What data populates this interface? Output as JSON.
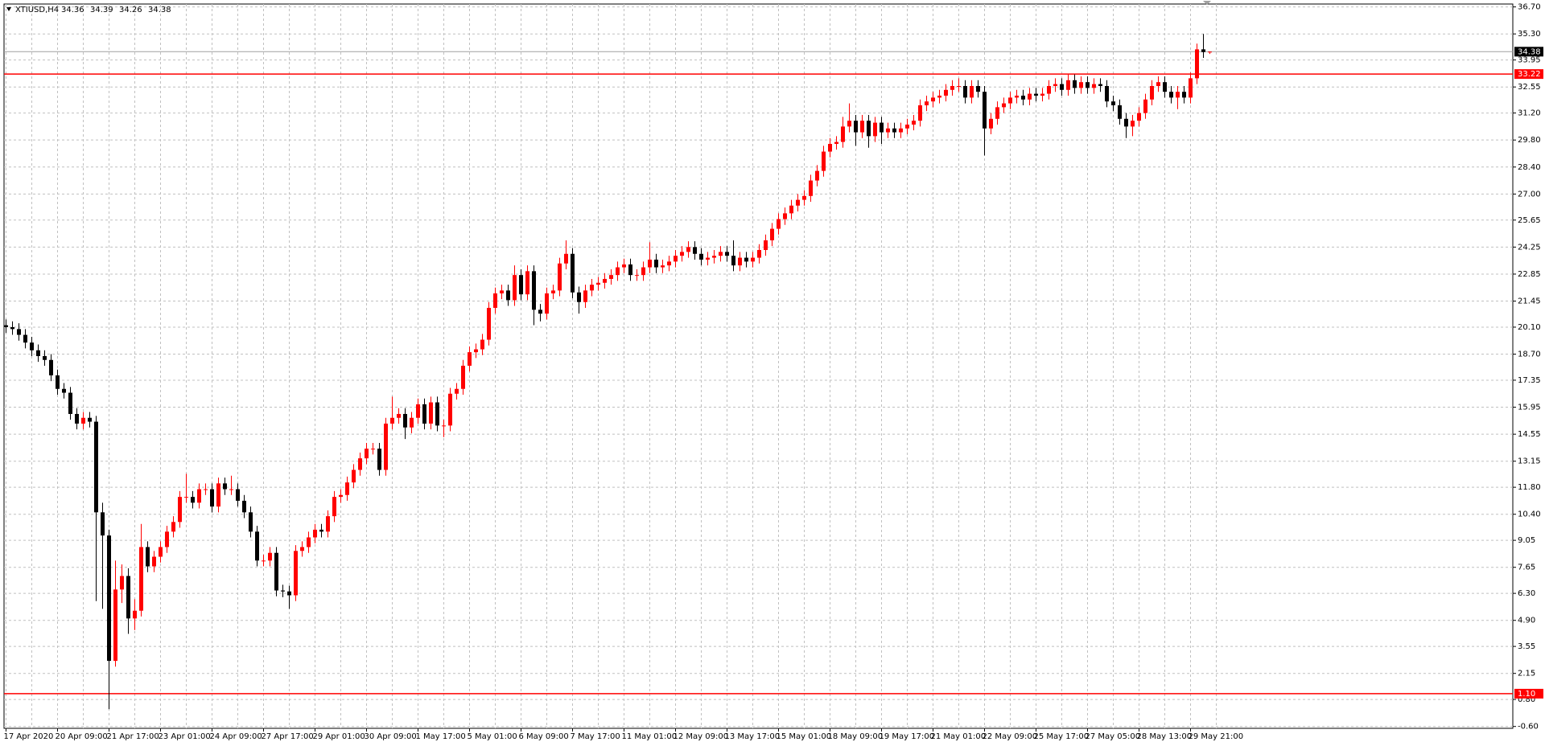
{
  "chart_data": {
    "type": "candlestick",
    "symbol": "XTIUSD,H4",
    "header_ohlc": [
      34.36,
      34.39,
      34.26,
      34.38
    ],
    "up_color": "#ff0000",
    "down_color": "#000000",
    "grid": true,
    "grid_color": "#c0c0c0",
    "ylim": [
      -0.6,
      36.7
    ],
    "yticks": [
      {
        "value": 36.7,
        "label": "36.70"
      },
      {
        "value": 35.3,
        "label": "35.30"
      },
      33.95,
      32.55,
      {
        "value": 31.2,
        "label": "31.20"
      },
      {
        "value": 29.8,
        "label": "29.80"
      },
      {
        "value": 28.4,
        "label": "28.40"
      },
      {
        "value": 27,
        "label": "27.00"
      },
      25.65,
      24.25,
      22.85,
      21.45,
      {
        "value": 20.1,
        "label": "20.10"
      },
      {
        "value": 18.7,
        "label": "18.70"
      },
      17.35,
      15.95,
      14.55,
      13.15,
      {
        "value": 11.8,
        "label": "11.80"
      },
      {
        "value": 10.4,
        "label": "10.40"
      },
      9.05,
      7.65,
      {
        "value": 6.3,
        "label": "6.30"
      },
      {
        "value": 4.9,
        "label": "4.90"
      },
      3.55,
      2.15,
      {
        "value": 0.8,
        "label": "0.80"
      },
      {
        "value": -0.6,
        "label": "-0.60"
      }
    ],
    "xticks": [
      {
        "value": 0,
        "label": "17 Apr 2020"
      },
      {
        "value": 8,
        "label": "20 Apr 09:00"
      },
      {
        "value": 16,
        "label": "21 Apr 17:00"
      },
      {
        "value": 24,
        "label": "23 Apr 01:00"
      },
      {
        "value": 32,
        "label": "24 Apr 09:00"
      },
      {
        "value": 40,
        "label": "27 Apr 17:00"
      },
      {
        "value": 48,
        "label": "29 Apr 01:00"
      },
      {
        "value": 56,
        "label": "30 Apr 09:00"
      },
      {
        "value": 64,
        "label": "1 May 17:00"
      },
      {
        "value": 72,
        "label": "5 May 01:00"
      },
      {
        "value": 80,
        "label": "6 May 09:00"
      },
      {
        "value": 88,
        "label": "7 May 17:00"
      },
      {
        "value": 96,
        "label": "11 May 01:00"
      },
      {
        "value": 104,
        "label": "12 May 09:00"
      },
      {
        "value": 112,
        "label": "13 May 17:00"
      },
      {
        "value": 120,
        "label": "15 May 01:00"
      },
      {
        "value": 128,
        "label": "18 May 09:00"
      },
      {
        "value": 136,
        "label": "19 May 17:00"
      },
      {
        "value": 144,
        "label": "21 May 01:00"
      },
      {
        "value": 152,
        "label": "22 May 09:00"
      },
      {
        "value": 160,
        "label": "25 May 17:00"
      },
      {
        "value": 168,
        "label": "27 May 05:00"
      },
      {
        "value": 176,
        "label": "28 May 13:00"
      },
      {
        "value": 184,
        "label": "29 May 21:00"
      }
    ],
    "bid_line": {
      "value": 34.38,
      "color": "#a0a0a0"
    },
    "hlines": [
      33.22,
      {
        "value": 1.1,
        "label": "1.10"
      }
    ],
    "hline_color": "#ff0000",
    "open": [
      20.2,
      20.1,
      20.0,
      19.7,
      19.3,
      18.9,
      18.6,
      18.4,
      17.6,
      16.9,
      16.7,
      15.6,
      15.1,
      15.4,
      15.2,
      10.5,
      9.3,
      2.8,
      6.5,
      7.2,
      5.0,
      5.4,
      8.7,
      7.7,
      8.2,
      8.7,
      9.5,
      10.0,
      11.3,
      11.3,
      11.0,
      11.7,
      11.7,
      10.8,
      12.0,
      11.7,
      11.7,
      11.1,
      10.5,
      9.5,
      8.0,
      8.0,
      8.4,
      6.45,
      6.4,
      6.2,
      8.5,
      8.7,
      9.2,
      9.6,
      9.5,
      10.3,
      11.3,
      11.4,
      12.05,
      12.7,
      13.3,
      13.8,
      13.8,
      12.7,
      15.1,
      15.4,
      15.6,
      14.9,
      15.4,
      16.1,
      15.1,
      16.2,
      15.0,
      15.0,
      16.65,
      16.9,
      18.1,
      18.8,
      18.95,
      19.45,
      21.1,
      21.85,
      22.0,
      21.5,
      22.8,
      21.8,
      23.0,
      21.0,
      20.8,
      21.85,
      22.0,
      23.4,
      23.9,
      21.9,
      21.4,
      22.0,
      22.3,
      22.4,
      22.6,
      22.8,
      23.2,
      23.35,
      22.8,
      22.8,
      23.2,
      23.6,
      23.2,
      23.3,
      23.5,
      23.8,
      24.0,
      24.25,
      23.9,
      23.6,
      23.7,
      23.8,
      24.0,
      23.8,
      23.3,
      23.7,
      23.5,
      23.7,
      24.1,
      24.6,
      25.2,
      25.7,
      26.0,
      26.4,
      26.7,
      26.9,
      27.7,
      28.2,
      29.2,
      29.6,
      29.7,
      30.5,
      30.8,
      30.2,
      30.8,
      30.0,
      30.7,
      30.2,
      30.4,
      30.2,
      30.4,
      30.6,
      30.8,
      31.6,
      31.8,
      32.0,
      32.1,
      32.4,
      32.6,
      32.6,
      32.0,
      32.6,
      32.3,
      30.4,
      30.9,
      31.5,
      31.7,
      32.0,
      32.1,
      31.9,
      32.2,
      32.1,
      32.2,
      32.6,
      32.7,
      32.4,
      32.9,
      32.5,
      32.8,
      32.5,
      32.7,
      32.6,
      31.8,
      31.6,
      30.9,
      30.5,
      30.8,
      31.2,
      31.9,
      32.6,
      32.8,
      32.3,
      32.0,
      32.3,
      32.0,
      33.0,
      34.5,
      34.36
    ],
    "high": [
      20.5,
      20.4,
      20.3,
      20.0,
      19.6,
      19.2,
      18.9,
      18.7,
      17.9,
      17.2,
      17.0,
      15.9,
      15.7,
      15.7,
      15.5,
      11.0,
      9.6,
      8.0,
      7.8,
      7.6,
      6.0,
      9.9,
      9.0,
      8.5,
      9.0,
      9.8,
      10.3,
      11.6,
      12.5,
      11.6,
      12.0,
      12.0,
      12.0,
      12.3,
      12.3,
      12.4,
      12.0,
      11.4,
      10.8,
      9.8,
      8.3,
      8.7,
      8.7,
      6.75,
      6.7,
      8.8,
      9.0,
      9.5,
      9.9,
      9.9,
      10.6,
      11.6,
      11.7,
      12.35,
      13.0,
      13.6,
      14.1,
      14.1,
      14.1,
      15.4,
      16.5,
      15.9,
      15.9,
      15.7,
      16.4,
      16.4,
      16.5,
      16.5,
      15.3,
      16.95,
      17.2,
      18.4,
      19.1,
      19.25,
      19.75,
      21.4,
      22.15,
      22.3,
      22.3,
      23.3,
      23.1,
      23.3,
      23.3,
      21.3,
      22.15,
      22.3,
      23.7,
      24.6,
      24.2,
      22.2,
      22.3,
      22.6,
      22.7,
      22.9,
      23.1,
      23.5,
      23.65,
      23.65,
      23.1,
      23.5,
      24.5,
      23.9,
      23.6,
      23.8,
      24.1,
      24.3,
      24.55,
      24.55,
      24.2,
      24.0,
      24.1,
      24.3,
      24.3,
      24.6,
      24.0,
      24.0,
      24.0,
      24.4,
      24.9,
      25.5,
      26.0,
      26.3,
      26.7,
      27.0,
      27.2,
      28.0,
      28.5,
      29.5,
      29.9,
      30.0,
      31.0,
      31.7,
      31.1,
      31.1,
      31.1,
      31.0,
      31.0,
      30.7,
      30.7,
      30.7,
      30.9,
      31.1,
      31.9,
      32.1,
      32.3,
      32.4,
      32.7,
      32.9,
      33.0,
      32.9,
      32.9,
      32.9,
      32.6,
      31.2,
      31.8,
      32.0,
      32.3,
      32.4,
      32.4,
      32.5,
      32.5,
      32.5,
      32.9,
      33.0,
      33.0,
      33.2,
      33.2,
      33.1,
      33.1,
      33.0,
      33.0,
      32.9,
      32.1,
      31.9,
      31.2,
      31.1,
      31.5,
      32.2,
      32.9,
      33.1,
      33.1,
      32.6,
      32.6,
      32.6,
      33.3,
      34.8,
      35.3,
      34.39
    ],
    "low": [
      19.8,
      19.7,
      19.4,
      19.0,
      18.6,
      18.3,
      18.1,
      17.3,
      16.6,
      16.4,
      15.3,
      14.8,
      14.8,
      14.9,
      5.9,
      5.5,
      0.3,
      2.5,
      5.8,
      4.2,
      4.4,
      5.1,
      7.4,
      7.4,
      7.9,
      8.4,
      9.2,
      9.7,
      11.0,
      10.7,
      10.7,
      11.4,
      10.5,
      10.5,
      11.4,
      11.4,
      10.8,
      10.2,
      9.2,
      7.7,
      7.7,
      7.7,
      6.15,
      6.1,
      5.5,
      5.9,
      8.2,
      8.4,
      8.9,
      9.2,
      9.2,
      10.0,
      11.0,
      11.1,
      11.75,
      12.4,
      13.0,
      13.5,
      12.4,
      12.4,
      14.8,
      15.1,
      14.3,
      14.6,
      15.1,
      14.8,
      14.8,
      14.7,
      14.4,
      14.7,
      16.35,
      16.6,
      17.8,
      18.5,
      18.65,
      19.15,
      20.8,
      21.55,
      21.2,
      21.2,
      21.5,
      21.5,
      20.2,
      20.4,
      20.5,
      21.55,
      21.7,
      23.1,
      21.6,
      20.8,
      21.1,
      21.7,
      22.0,
      22.1,
      22.3,
      22.5,
      22.9,
      22.5,
      22.5,
      22.5,
      22.9,
      22.9,
      22.9,
      23.0,
      23.2,
      23.5,
      23.7,
      23.6,
      23.3,
      23.3,
      23.4,
      23.5,
      23.5,
      23.0,
      23.0,
      23.2,
      23.2,
      23.4,
      23.8,
      24.3,
      24.9,
      25.4,
      25.7,
      26.1,
      26.4,
      26.6,
      27.4,
      27.9,
      28.9,
      29.3,
      29.4,
      30.2,
      29.5,
      29.9,
      29.4,
      29.7,
      29.6,
      29.9,
      29.9,
      29.9,
      30.1,
      30.3,
      30.5,
      31.3,
      31.5,
      31.7,
      31.8,
      32.1,
      32.3,
      31.7,
      31.7,
      32.0,
      29.0,
      30.1,
      30.6,
      31.2,
      31.4,
      31.7,
      31.6,
      31.6,
      31.8,
      31.8,
      31.9,
      32.3,
      32.1,
      32.1,
      32.2,
      32.2,
      32.2,
      32.2,
      32.3,
      31.5,
      31.3,
      30.6,
      29.9,
      30.0,
      30.5,
      30.9,
      31.6,
      32.3,
      32.0,
      31.7,
      31.4,
      31.7,
      31.7,
      32.7,
      34.06,
      34.26
    ],
    "close": [
      20.1,
      20.0,
      19.7,
      19.3,
      18.9,
      18.6,
      18.4,
      17.6,
      16.9,
      16.7,
      15.6,
      15.1,
      15.4,
      15.2,
      10.5,
      9.3,
      2.8,
      6.5,
      7.2,
      5.0,
      5.4,
      8.7,
      7.7,
      8.2,
      8.7,
      9.5,
      10.0,
      11.3,
      11.3,
      11.0,
      11.7,
      11.7,
      10.8,
      12.0,
      11.7,
      11.7,
      11.1,
      10.5,
      9.5,
      8.0,
      8.0,
      8.4,
      6.45,
      6.4,
      6.2,
      8.5,
      8.7,
      9.2,
      9.6,
      9.5,
      10.3,
      11.3,
      11.4,
      12.05,
      12.7,
      13.3,
      13.8,
      13.8,
      12.7,
      15.1,
      15.4,
      15.6,
      14.9,
      15.4,
      16.1,
      15.1,
      16.2,
      15.0,
      15.0,
      16.65,
      16.9,
      18.1,
      18.8,
      18.95,
      19.45,
      21.1,
      21.85,
      22.0,
      21.5,
      22.8,
      21.8,
      23.0,
      21.0,
      20.8,
      21.85,
      22.0,
      23.4,
      23.9,
      21.9,
      21.4,
      22.0,
      22.3,
      22.4,
      22.6,
      22.8,
      23.2,
      23.35,
      22.8,
      22.8,
      23.2,
      23.6,
      23.2,
      23.3,
      23.5,
      23.8,
      24.0,
      24.25,
      23.9,
      23.6,
      23.7,
      23.8,
      24.0,
      23.8,
      23.3,
      23.7,
      23.5,
      23.7,
      24.1,
      24.6,
      25.2,
      25.7,
      26.0,
      26.4,
      26.7,
      26.9,
      27.7,
      28.2,
      29.2,
      29.6,
      29.7,
      30.5,
      30.8,
      30.2,
      30.8,
      30.0,
      30.7,
      30.2,
      30.4,
      30.2,
      30.4,
      30.6,
      30.8,
      31.6,
      31.8,
      32.0,
      32.1,
      32.4,
      32.6,
      32.6,
      32.0,
      32.6,
      32.3,
      30.4,
      30.9,
      31.5,
      31.7,
      32.0,
      32.1,
      31.9,
      32.2,
      32.1,
      32.2,
      32.6,
      32.7,
      32.4,
      32.9,
      32.5,
      32.8,
      32.5,
      32.7,
      32.6,
      31.8,
      31.6,
      30.9,
      30.5,
      30.8,
      31.2,
      31.9,
      32.6,
      32.8,
      32.3,
      32.0,
      32.3,
      32.0,
      33.0,
      34.5,
      34.36,
      34.38
    ]
  }
}
